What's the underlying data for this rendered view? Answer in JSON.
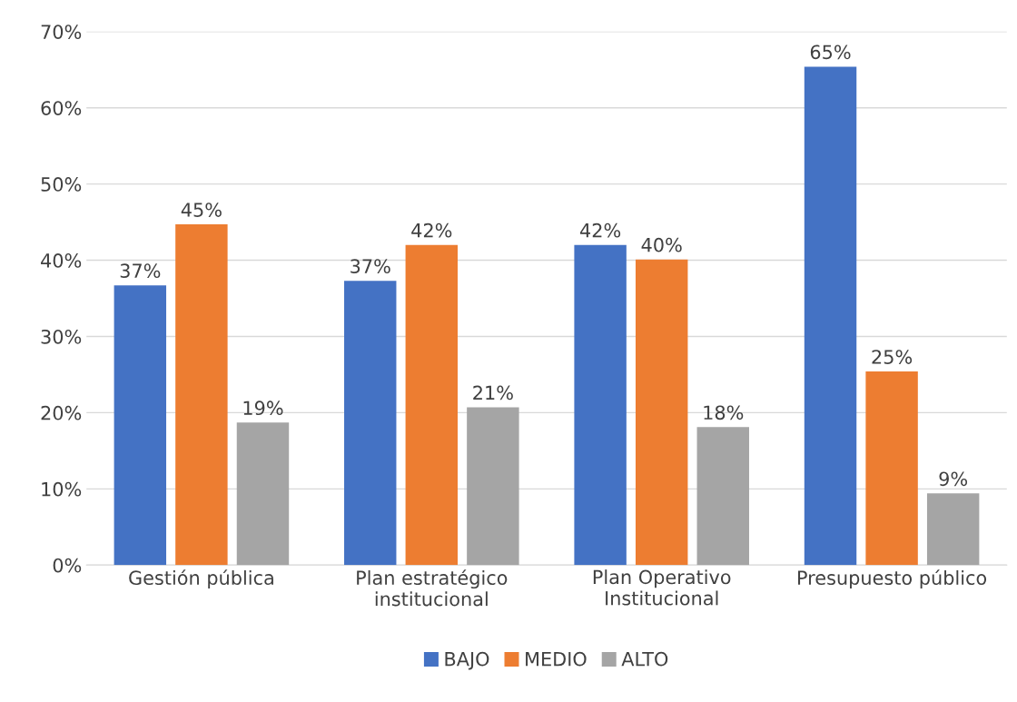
{
  "chart_data": {
    "type": "bar",
    "categories": [
      "Gestión pública",
      "Plan estratégico\ninstitucional",
      "Plan Operativo\nInstitucional",
      "Presupuesto público"
    ],
    "series": [
      {
        "name": "BAJO",
        "color": "#4472c4",
        "values": [
          36.7,
          37.3,
          42.0,
          65.4
        ],
        "value_labels": [
          "37%",
          "37%",
          "42%",
          "65%"
        ]
      },
      {
        "name": "MEDIO",
        "color": "#ed7d31",
        "values": [
          44.7,
          42.0,
          40.1,
          25.4
        ],
        "value_labels": [
          "45%",
          "42%",
          "40%",
          "25%"
        ]
      },
      {
        "name": "ALTO",
        "color": "#a5a5a5",
        "values": [
          18.7,
          20.7,
          18.1,
          9.4
        ],
        "value_labels": [
          "19%",
          "21%",
          "18%",
          "9%"
        ]
      }
    ],
    "ylim": [
      0,
      70
    ],
    "yticks": [
      {
        "value": 0,
        "label": "0%"
      },
      {
        "value": 10,
        "label": "10%"
      },
      {
        "value": 20,
        "label": "20%"
      },
      {
        "value": 30,
        "label": "30%"
      },
      {
        "value": 40,
        "label": "40%"
      },
      {
        "value": 50,
        "label": "50%"
      },
      {
        "value": 60,
        "label": "60%"
      },
      {
        "value": 70,
        "label": "70%"
      }
    ],
    "grid": "y",
    "legend": "bottom"
  }
}
